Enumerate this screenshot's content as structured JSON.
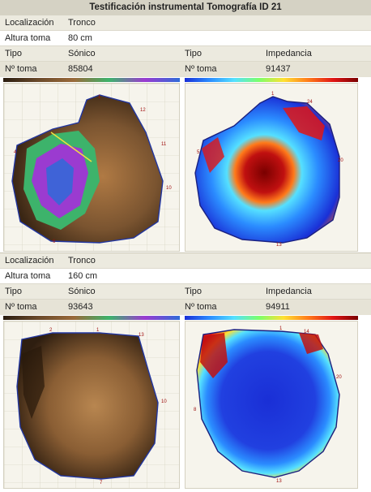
{
  "title": "Testificación instrumental Tomografía ID 21",
  "sections": [
    {
      "localizacion_label": "Localización",
      "localizacion": "Tronco",
      "altura_label": "Altura toma",
      "altura": "80 cm",
      "left": {
        "tipo_label": "Tipo",
        "tipo": "Sónico",
        "toma_label": "Nº toma",
        "toma": "85804"
      },
      "right": {
        "tipo_label": "Tipo",
        "tipo": "Impedancia",
        "toma_label": "Nº toma",
        "toma": "91437"
      }
    },
    {
      "localizacion_label": "Localización",
      "localizacion": "Tronco",
      "altura_label": "Altura toma",
      "altura": "160 cm",
      "left": {
        "tipo_label": "Tipo",
        "tipo": "Sónico",
        "toma_label": "Nº toma",
        "toma": "93643"
      },
      "right": {
        "tipo_label": "Tipo",
        "tipo": "Impedancia",
        "toma_label": "Nº toma",
        "toma": "94911"
      }
    }
  ],
  "colors": {
    "sonic_scale": [
      "#2b1d10",
      "#6b4a2a",
      "#9a6a3a",
      "#3db36b",
      "#9b3bd0",
      "#2f6bd8"
    ],
    "impedance_scale": [
      "#1a2fd6",
      "#2b8cff",
      "#55e0ff",
      "#7cff6a",
      "#ffe033",
      "#ff7a1a",
      "#e01515",
      "#7a0000"
    ]
  }
}
